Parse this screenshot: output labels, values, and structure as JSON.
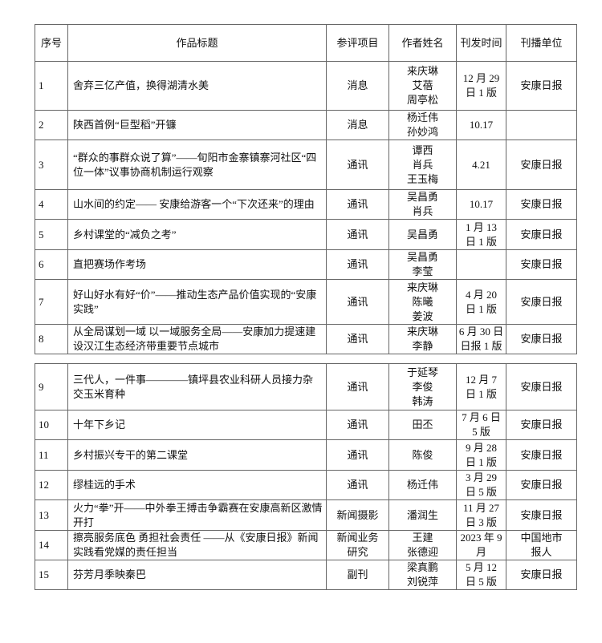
{
  "headers": [
    "序号",
    "作品标题",
    "参评项目",
    "作者姓名",
    "刊发时间",
    "刊播单位"
  ],
  "rows": [
    {
      "no": "1",
      "title": "舍弃三亿产值，换得湖清水美",
      "category": "消息",
      "authors": "来庆琳\n艾蓓\n周亭松",
      "date": "12 月 29\n日 1 版",
      "outlet": "安康日报"
    },
    {
      "no": "2",
      "title": "陕西首例“巨型稻”开镰",
      "category": "消息",
      "authors": "杨迁伟\n孙妙鸿",
      "date": "10.17",
      "outlet": ""
    },
    {
      "no": "3",
      "title": "“群众的事群众说了算”——旬阳市金寨镇寨河社区“四位一体”议事协商机制运行观察",
      "category": "通讯",
      "authors": "谭西\n肖兵\n王玉梅",
      "date": "4.21",
      "outlet": "安康日报"
    },
    {
      "no": "4",
      "title": "山水间的约定—— 安康给游客一个“下次还来”的理由",
      "category": "通讯",
      "authors": "吴昌勇\n肖兵",
      "date": "10.17",
      "outlet": "安康日报"
    },
    {
      "no": "5",
      "title": "乡村课堂的“减负之考”",
      "category": "通讯",
      "authors": "吴昌勇",
      "date": "1 月 13\n日 1 版",
      "outlet": "安康日报"
    },
    {
      "no": "6",
      "title": "直把赛场作考场",
      "category": "通讯",
      "authors": "吴昌勇\n李莹",
      "date": "",
      "outlet": "安康日报"
    },
    {
      "no": "7",
      "title": "好山好水有好“价”——推动生态产品价值实现的“安康实践”",
      "category": "通讯",
      "authors": "来庆琳\n陈曦\n姜波",
      "date": "4 月 20\n日 1 版",
      "outlet": "安康日报"
    },
    {
      "no": "8",
      "title": "从全局谋划一域 以一域服务全局——安康加力提速建设汉江生态经济带重要节点城市",
      "category": "通讯",
      "authors": "来庆琳\n李静",
      "date": "6 月 30 日\n日报 1 版",
      "outlet": "安康日报"
    },
    {
      "no": "9",
      "title": "三代人，一件事————镇坪县农业科研人员接力杂交玉米育种",
      "category": "通讯",
      "authors": "于延琴\n李俊\n韩涛",
      "date": "12 月 7\n日 1 版",
      "outlet": "安康日报"
    },
    {
      "no": "10",
      "title": "十年下乡记",
      "category": "通讯",
      "authors": "田丕",
      "date": "7 月 6 日\n5 版",
      "outlet": "安康日报"
    },
    {
      "no": "11",
      "title": "乡村振兴专干的第二课堂",
      "category": "通讯",
      "authors": "陈俊",
      "date": "9 月 28\n日 1 版",
      "outlet": "安康日报"
    },
    {
      "no": "12",
      "title": "缪桂远的手术",
      "category": "通讯",
      "authors": "杨迁伟",
      "date": "3 月 29\n日 5 版",
      "outlet": "安康日报"
    },
    {
      "no": "13",
      "title": "火力“拳”开——中外拳王搏击争霸赛在安康高新区激情开打",
      "category": "新闻摄影",
      "authors": "潘润生",
      "date": "11 月 27\n日 3 版",
      "outlet": "安康日报"
    },
    {
      "no": "14",
      "title": "擦亮服务底色 勇担社会责任 ——从《安康日报》新闻实践看党媒的责任担当",
      "category": "新闻业务\n研究",
      "authors": "王建\n张德迎",
      "date": "2023 年 9\n月",
      "outlet": "中国地市\n报人"
    },
    {
      "no": "15",
      "title": "芬芳月季映秦巴",
      "category": "副刊",
      "authors": "梁真鹏\n刘锐萍",
      "date": "5 月 12\n日 5 版",
      "outlet": "安康日报"
    }
  ]
}
